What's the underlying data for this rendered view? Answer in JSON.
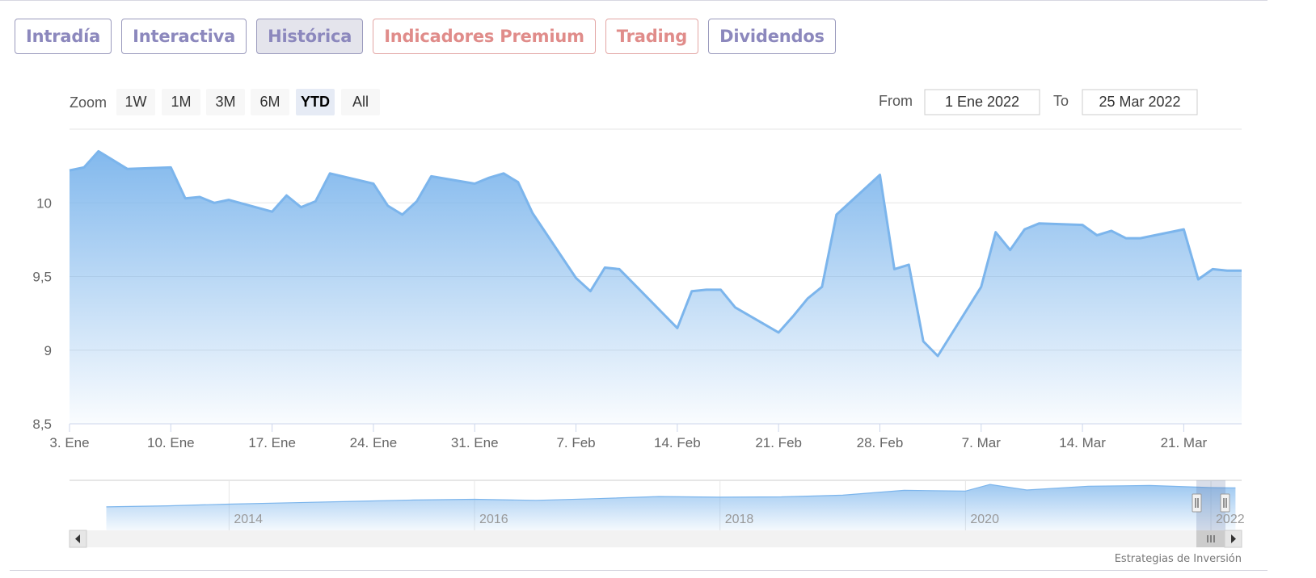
{
  "tabs": [
    {
      "label": "Intradía",
      "variant": "default"
    },
    {
      "label": "Interactiva",
      "variant": "default"
    },
    {
      "label": "Histórica",
      "variant": "active"
    },
    {
      "label": "Indicadores Premium",
      "variant": "premium"
    },
    {
      "label": "Trading",
      "variant": "premium"
    },
    {
      "label": "Dividendos",
      "variant": "default"
    }
  ],
  "range_selector": {
    "zoom_label": "Zoom",
    "buttons": [
      "1W",
      "1M",
      "3M",
      "6M",
      "YTD",
      "All"
    ],
    "selected": "YTD",
    "from_label": "From",
    "from_value": "1 Ene 2022",
    "to_label": "To",
    "to_value": "25 Mar 2022"
  },
  "credits": "Estrategias de Inversión",
  "colors": {
    "line": "#7cb5ec",
    "area_top": "#7cb5ec",
    "tab_text": "#8c88bd",
    "tab_premium_text": "#e08c8a"
  },
  "chart_data": {
    "type": "area",
    "title": "",
    "xlabel": "",
    "ylabel": "",
    "ylim": [
      8.5,
      10.5
    ],
    "y_ticks": [
      "8,5",
      "9",
      "9,5",
      "10"
    ],
    "x_ticks": [
      "3. Ene",
      "10. Ene",
      "17. Ene",
      "24. Ene",
      "31. Ene",
      "7. Feb",
      "14. Feb",
      "21. Feb",
      "28. Feb",
      "7. Mar",
      "14. Mar",
      "21. Mar"
    ],
    "series": [
      {
        "x": [
          "2022-01-03",
          "2022-01-04",
          "2022-01-05",
          "2022-01-06",
          "2022-01-07",
          "2022-01-10",
          "2022-01-11",
          "2022-01-12",
          "2022-01-13",
          "2022-01-14",
          "2022-01-17",
          "2022-01-18",
          "2022-01-19",
          "2022-01-20",
          "2022-01-21",
          "2022-01-24",
          "2022-01-25",
          "2022-01-26",
          "2022-01-27",
          "2022-01-28",
          "2022-01-31",
          "2022-02-01",
          "2022-02-02",
          "2022-02-03",
          "2022-02-04",
          "2022-02-07",
          "2022-02-08",
          "2022-02-09",
          "2022-02-10",
          "2022-02-11",
          "2022-02-14",
          "2022-02-15",
          "2022-02-16",
          "2022-02-17",
          "2022-02-18",
          "2022-02-21",
          "2022-02-22",
          "2022-02-23",
          "2022-02-24",
          "2022-02-25",
          "2022-02-28",
          "2022-03-01",
          "2022-03-02",
          "2022-03-03",
          "2022-03-04",
          "2022-03-07",
          "2022-03-08",
          "2022-03-09",
          "2022-03-10",
          "2022-03-11",
          "2022-03-14",
          "2022-03-15",
          "2022-03-16",
          "2022-03-17",
          "2022-03-18",
          "2022-03-21",
          "2022-03-22",
          "2022-03-23",
          "2022-03-24",
          "2022-03-25"
        ],
        "y": [
          10.22,
          10.24,
          10.35,
          10.29,
          10.23,
          10.24,
          10.03,
          10.04,
          10.0,
          10.02,
          9.94,
          10.05,
          9.97,
          10.01,
          10.2,
          10.13,
          9.98,
          9.92,
          10.01,
          10.18,
          10.13,
          10.17,
          10.2,
          10.14,
          9.93,
          9.49,
          9.4,
          9.56,
          9.55,
          9.45,
          9.15,
          9.4,
          9.41,
          9.41,
          9.29,
          9.12,
          9.23,
          9.35,
          9.43,
          9.92,
          10.19,
          9.55,
          9.58,
          9.06,
          8.96,
          9.43,
          9.8,
          9.68,
          9.82,
          9.86,
          9.85,
          9.78,
          9.81,
          9.76,
          9.76,
          9.82,
          9.48,
          9.55,
          9.54,
          9.54
        ]
      }
    ],
    "navigator": {
      "x_ticks": [
        "2014",
        "2016",
        "2018",
        "2020",
        "2022"
      ],
      "series": [
        {
          "x": [
            2013.0,
            2013.5,
            2014.0,
            2014.5,
            2015.0,
            2015.5,
            2016.0,
            2016.5,
            2017.0,
            2017.5,
            2018.0,
            2018.5,
            2019.0,
            2019.5,
            2020.0,
            2020.2,
            2020.5,
            2021.0,
            2021.5,
            2022.0,
            2022.2
          ],
          "y": [
            4.0,
            4.3,
            4.8,
            5.2,
            5.6,
            6.0,
            6.2,
            5.9,
            6.4,
            7.0,
            6.8,
            6.9,
            7.4,
            8.8,
            8.6,
            10.5,
            8.9,
            10.0,
            10.2,
            9.6,
            9.5
          ]
        }
      ]
    }
  }
}
